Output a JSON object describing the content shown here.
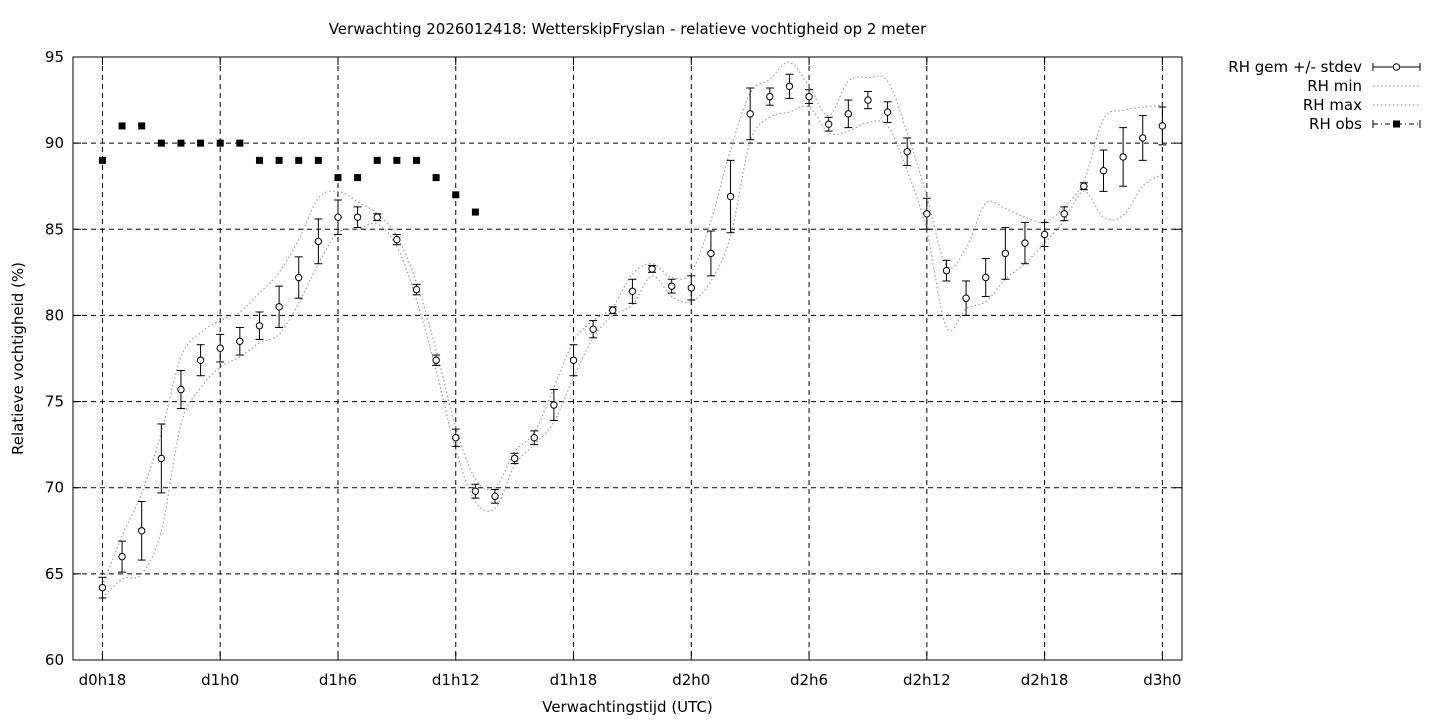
{
  "chart_data": {
    "type": "line",
    "title": "Verwachting 2026012418: WetterskipFryslan - relatieve vochtigheid op 2 meter",
    "xlabel": "Verwachtingstijd (UTC)",
    "ylabel": "Relatieve vochtigheid (%)",
    "ylim": [
      60,
      95
    ],
    "xlim": [
      -1.5,
      55
    ],
    "yticks": [
      60,
      65,
      70,
      75,
      80,
      85,
      90,
      95
    ],
    "xticks": [
      {
        "value": 0,
        "label": "d0h18"
      },
      {
        "value": 6,
        "label": "d1h0"
      },
      {
        "value": 12,
        "label": "d1h6"
      },
      {
        "value": 18,
        "label": "d1h12"
      },
      {
        "value": 24,
        "label": "d1h18"
      },
      {
        "value": 30,
        "label": "d2h0"
      },
      {
        "value": 36,
        "label": "d2h6"
      },
      {
        "value": 42,
        "label": "d2h12"
      },
      {
        "value": 48,
        "label": "d2h18"
      },
      {
        "value": 54,
        "label": "d3h0"
      }
    ],
    "grid": true,
    "legend_position": "outside-top-right",
    "series": [
      {
        "name": "RH gem +/- stdev",
        "style": "errorbars",
        "x": [
          0,
          1,
          2,
          3,
          4,
          5,
          6,
          7,
          8,
          9,
          10,
          11,
          12,
          13,
          14,
          15,
          16,
          17,
          18,
          19,
          20,
          21,
          22,
          23,
          24,
          25,
          26,
          27,
          28,
          29,
          30,
          31,
          32,
          33,
          34,
          35,
          36,
          37,
          38,
          39,
          40,
          41,
          42,
          43,
          44,
          45,
          46,
          47,
          48,
          49,
          50,
          51,
          52,
          53,
          54
        ],
        "y": [
          64.2,
          66.0,
          67.5,
          71.7,
          75.7,
          77.4,
          78.1,
          78.5,
          79.4,
          80.5,
          82.2,
          84.3,
          85.7,
          85.7,
          85.7,
          84.4,
          81.5,
          77.4,
          72.9,
          69.8,
          69.5,
          71.7,
          72.9,
          74.8,
          77.4,
          79.2,
          80.3,
          81.4,
          82.7,
          81.7,
          81.6,
          83.6,
          86.9,
          91.7,
          92.7,
          93.3,
          92.7,
          91.1,
          91.7,
          92.5,
          91.8,
          89.5,
          85.9,
          82.6,
          81.0,
          82.2,
          83.6,
          84.2,
          84.7,
          85.9,
          87.5,
          88.4,
          89.2,
          90.3,
          91.0
        ],
        "stdev": [
          0.6,
          0.9,
          1.7,
          2.0,
          1.1,
          0.9,
          0.8,
          0.8,
          0.8,
          1.2,
          1.2,
          1.3,
          1.0,
          0.6,
          0.2,
          0.3,
          0.3,
          0.3,
          0.5,
          0.4,
          0.4,
          0.3,
          0.4,
          0.9,
          0.9,
          0.5,
          0.2,
          0.7,
          0.2,
          0.4,
          0.7,
          1.3,
          2.1,
          1.5,
          0.5,
          0.7,
          0.4,
          0.4,
          0.8,
          0.5,
          0.6,
          0.8,
          0.9,
          0.6,
          1.0,
          1.1,
          1.5,
          1.2,
          0.7,
          0.4,
          0.2,
          1.2,
          1.7,
          1.3,
          1.1
        ],
        "color": "#000000"
      },
      {
        "name": "RH min",
        "style": "dotted",
        "x": [
          0,
          1,
          2,
          3,
          4,
          5,
          6,
          7,
          8,
          9,
          10,
          11,
          12,
          13,
          14,
          15,
          16,
          17,
          18,
          19,
          20,
          21,
          22,
          23,
          24,
          25,
          26,
          27,
          28,
          29,
          30,
          31,
          32,
          33,
          34,
          35,
          36,
          37,
          38,
          39,
          40,
          41,
          42,
          43,
          44,
          45,
          46,
          47,
          48,
          49,
          50,
          51,
          52,
          53,
          54
        ],
        "y": [
          63.6,
          64.7,
          65.0,
          67.5,
          73.7,
          75.8,
          77.0,
          77.6,
          78.4,
          78.9,
          80.7,
          83.0,
          84.8,
          85.0,
          85.3,
          84.0,
          80.9,
          76.8,
          72.2,
          69.2,
          68.8,
          71.3,
          72.5,
          73.8,
          76.4,
          78.7,
          80.0,
          80.6,
          82.3,
          81.1,
          80.8,
          82.0,
          84.6,
          90.1,
          91.5,
          91.8,
          92.1,
          90.6,
          90.7,
          91.2,
          91.0,
          88.4,
          84.9,
          79.3,
          80.4,
          80.8,
          82.1,
          83.0,
          84.2,
          85.5,
          87.2,
          85.7,
          85.8,
          87.5,
          88.2
        ],
        "color": "#999999"
      },
      {
        "name": "RH max",
        "style": "dotted",
        "x": [
          0,
          1,
          2,
          3,
          4,
          5,
          6,
          7,
          8,
          9,
          10,
          11,
          12,
          13,
          14,
          15,
          16,
          17,
          18,
          19,
          20,
          21,
          22,
          23,
          24,
          25,
          26,
          27,
          28,
          29,
          30,
          31,
          32,
          33,
          34,
          35,
          36,
          37,
          38,
          39,
          40,
          41,
          42,
          43,
          44,
          45,
          46,
          47,
          48,
          49,
          50,
          51,
          52,
          53,
          54
        ],
        "y": [
          64.3,
          67.2,
          69.7,
          73.2,
          77.6,
          79.0,
          79.7,
          80.2,
          81.3,
          82.5,
          84.4,
          86.8,
          87.2,
          86.6,
          85.9,
          84.6,
          81.9,
          78.0,
          73.5,
          70.5,
          70.0,
          72.1,
          73.2,
          75.8,
          78.5,
          79.7,
          80.5,
          82.4,
          83.0,
          82.2,
          82.5,
          85.5,
          89.6,
          92.9,
          93.7,
          94.7,
          93.3,
          91.6,
          93.6,
          93.8,
          93.6,
          90.6,
          86.9,
          82.9,
          83.9,
          86.5,
          86.2,
          85.7,
          85.4,
          86.3,
          87.8,
          91.4,
          91.9,
          92.1,
          92.2
        ],
        "color": "#999999"
      },
      {
        "name": "RH obs",
        "style": "filled-squares",
        "x": [
          0,
          1,
          2,
          3,
          4,
          5,
          6,
          7,
          8,
          9,
          10,
          11,
          12,
          13,
          14,
          15,
          16,
          17,
          18,
          19
        ],
        "y": [
          89,
          91,
          91,
          90,
          90,
          90,
          90,
          90,
          89,
          89,
          89,
          89,
          88,
          88,
          89,
          89,
          89,
          88,
          87,
          86
        ],
        "color": "#000000"
      }
    ]
  }
}
